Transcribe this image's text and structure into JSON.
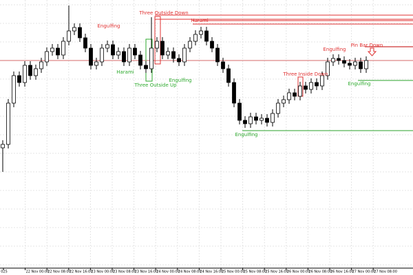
{
  "chart_data": {
    "type": "candlestick",
    "ylim": [
      10,
      400
    ],
    "grid": true,
    "bull_color": "#ffffff",
    "bear_color": "#000000",
    "open": [
      185,
      190,
      250,
      290,
      280,
      305,
      290,
      300,
      310,
      325,
      330,
      320,
      340,
      355,
      360,
      345,
      330,
      305,
      310,
      330,
      335,
      320,
      325,
      310,
      330,
      320,
      305,
      300,
      330,
      340,
      320,
      325,
      315,
      310,
      330,
      340,
      350,
      355,
      340,
      330,
      310,
      300,
      280,
      250,
      225,
      220,
      230,
      225,
      228,
      222,
      235,
      250,
      255,
      265,
      260,
      275,
      270,
      280,
      275,
      290,
      310,
      315,
      312,
      308,
      305,
      310,
      300
    ],
    "high": [
      196,
      256,
      296,
      296,
      311,
      311,
      306,
      316,
      331,
      336,
      336,
      346,
      392,
      366,
      366,
      351,
      336,
      316,
      336,
      341,
      341,
      331,
      331,
      336,
      336,
      326,
      311,
      375,
      346,
      346,
      331,
      331,
      321,
      336,
      346,
      356,
      361,
      361,
      346,
      336,
      316,
      306,
      286,
      256,
      231,
      236,
      236,
      234,
      234,
      241,
      256,
      261,
      271,
      271,
      281,
      281,
      286,
      286,
      296,
      316,
      321,
      321,
      318,
      314,
      316,
      316,
      318
    ],
    "low": [
      150,
      184,
      244,
      274,
      274,
      284,
      284,
      294,
      304,
      319,
      314,
      314,
      334,
      349,
      339,
      324,
      299,
      299,
      304,
      324,
      314,
      314,
      304,
      304,
      314,
      299,
      294,
      294,
      324,
      314,
      314,
      309,
      304,
      304,
      324,
      334,
      344,
      334,
      324,
      304,
      294,
      274,
      244,
      219,
      214,
      214,
      219,
      219,
      216,
      216,
      229,
      244,
      249,
      254,
      254,
      264,
      264,
      269,
      269,
      284,
      304,
      306,
      302,
      299,
      299,
      294,
      294
    ],
    "close": [
      190,
      250,
      290,
      280,
      305,
      290,
      300,
      310,
      325,
      330,
      320,
      340,
      355,
      360,
      345,
      330,
      305,
      310,
      330,
      335,
      320,
      325,
      310,
      330,
      320,
      305,
      300,
      330,
      340,
      320,
      325,
      315,
      310,
      330,
      340,
      350,
      355,
      340,
      330,
      310,
      300,
      280,
      250,
      225,
      220,
      230,
      225,
      228,
      222,
      235,
      250,
      255,
      265,
      260,
      275,
      270,
      280,
      275,
      290,
      310,
      315,
      312,
      308,
      305,
      310,
      300,
      312
    ],
    "levels": [
      {
        "value": 312,
        "color": "#d46a6a"
      },
      {
        "value": 378,
        "color": "#e03030"
      },
      {
        "value": 372,
        "color": "#e03030"
      },
      {
        "value": 370,
        "color": "#e03030"
      },
      {
        "value": 365,
        "color": "#e03030"
      },
      {
        "value": 332,
        "color": "#c00000"
      },
      {
        "value": 283,
        "color": "#2aa02a"
      },
      {
        "value": 210,
        "color": "#2aa02a"
      }
    ],
    "annotations": [
      {
        "text": "Engulfing",
        "color": "#e03030"
      },
      {
        "text": "Harami",
        "color": "#2eaa2e"
      },
      {
        "text": "Three Outside Up",
        "color": "#2eaa2e"
      },
      {
        "text": "Three Outside Down",
        "color": "#e03030"
      },
      {
        "text": "Engulfing",
        "color": "#2eaa2e"
      },
      {
        "text": "Harami",
        "color": "#e03030"
      },
      {
        "text": "Engulfing",
        "color": "#2eaa2e"
      },
      {
        "text": "Three Inside Down",
        "color": "#e03030"
      },
      {
        "text": "Engulfing",
        "color": "#e03030"
      },
      {
        "text": "Pin Bar Down",
        "color": "#e03030"
      },
      {
        "text": "Engulfing",
        "color": "#2eaa2e"
      }
    ],
    "xtick_labels": [
      "025",
      "22 Nov 00:00",
      "22 Nov 08:00",
      "22 Nov 16:00",
      "23 Nov 00:00",
      "23 Nov 08:00",
      "23 Nov 16:00",
      "24 Nov 00:00",
      "24 Nov 08:00",
      "24 Nov 16:00",
      "25 Nov 00:00",
      "25 Nov 08:00",
      "25 Nov 16:00",
      "26 Nov 00:00",
      "26 Nov 08:00",
      "26 Nov 16:00",
      "27 Nov 00:00",
      "27 Nov 08:00"
    ]
  }
}
